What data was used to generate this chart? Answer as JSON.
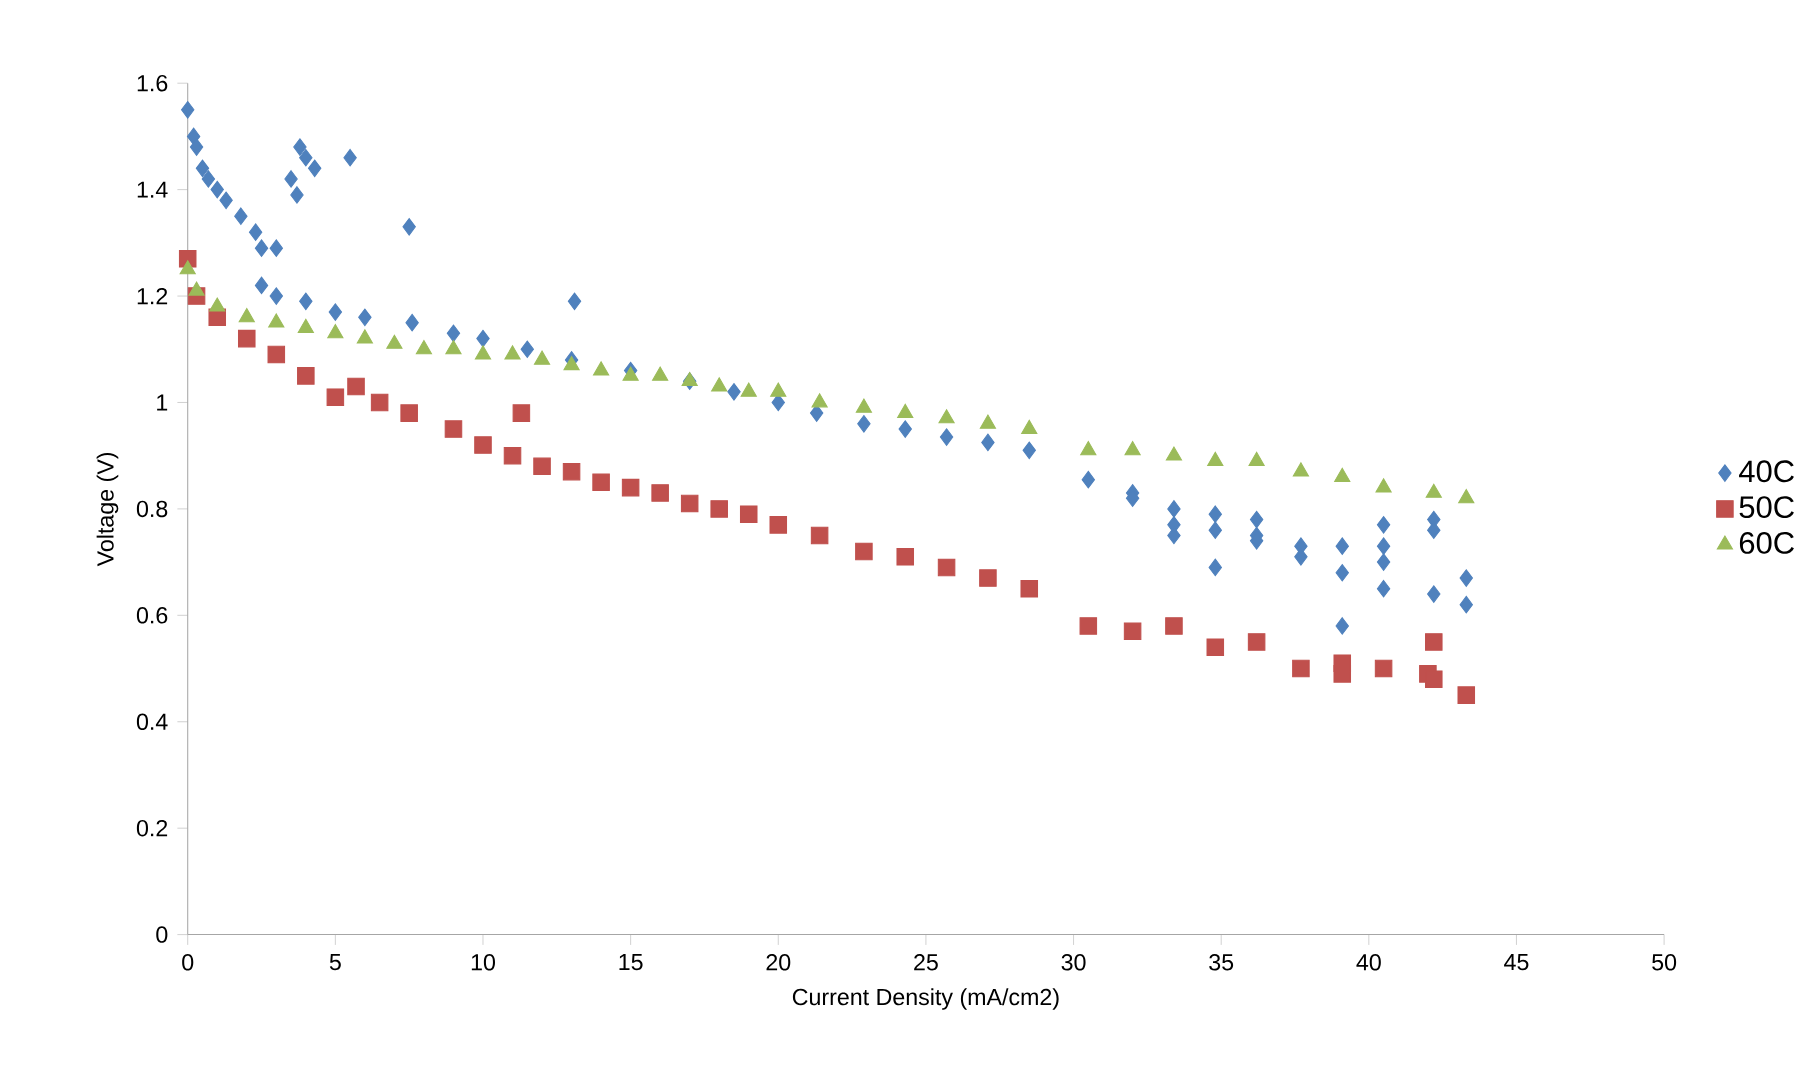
{
  "chart_data": {
    "type": "scatter",
    "xlabel": "Current Density (mA/cm2)",
    "ylabel": "Voltage (V)",
    "xlim": [
      0,
      50
    ],
    "ylim": [
      0,
      1.6
    ],
    "xticks": [
      0,
      5,
      10,
      15,
      20,
      25,
      30,
      35,
      40,
      45,
      50
    ],
    "yticks": [
      0,
      0.2,
      0.4,
      0.6,
      0.8,
      1,
      1.2,
      1.4,
      1.6
    ],
    "legend": "right",
    "grid": false,
    "series": [
      {
        "name": "40C",
        "color": "#4f81bd",
        "marker": "diamond",
        "x": [
          0,
          0.2,
          0.3,
          0.5,
          0.7,
          1,
          1.3,
          1.8,
          2.3,
          2.5,
          3,
          3.5,
          3.7,
          3.8,
          4.0,
          4.3,
          5.5,
          7.5,
          13.1,
          2.5,
          3,
          4,
          5,
          6,
          7.6,
          9,
          10,
          11.5,
          13,
          15,
          17,
          18.5,
          20,
          21.3,
          22.9,
          24.3,
          25.7,
          27.1,
          28.5,
          30.5,
          32,
          32,
          33.4,
          33.4,
          33.4,
          34.8,
          34.8,
          34.8,
          36.2,
          36.2,
          36.2,
          37.7,
          37.7,
          39.1,
          39.1,
          39.1,
          40.5,
          40.5,
          40.5,
          40.5,
          42.2,
          42.2,
          42.2,
          43.3,
          43.3
        ],
        "values": [
          1.55,
          1.5,
          1.48,
          1.44,
          1.42,
          1.4,
          1.38,
          1.35,
          1.32,
          1.29,
          1.29,
          1.42,
          1.39,
          1.48,
          1.46,
          1.44,
          1.46,
          1.33,
          1.19,
          1.22,
          1.2,
          1.19,
          1.17,
          1.16,
          1.15,
          1.13,
          1.12,
          1.1,
          1.08,
          1.06,
          1.04,
          1.02,
          1.0,
          0.98,
          0.96,
          0.95,
          0.935,
          0.925,
          0.91,
          0.855,
          0.83,
          0.82,
          0.8,
          0.77,
          0.75,
          0.79,
          0.76,
          0.69,
          0.78,
          0.75,
          0.74,
          0.73,
          0.71,
          0.73,
          0.68,
          0.58,
          0.77,
          0.73,
          0.7,
          0.65,
          0.78,
          0.76,
          0.64,
          0.67,
          0.62
        ]
      },
      {
        "name": "50C",
        "color": "#c0504d",
        "marker": "square",
        "x": [
          0,
          0.3,
          1,
          2,
          3,
          4,
          5,
          5.7,
          6.5,
          7.5,
          9,
          10,
          11,
          11.3,
          12,
          13,
          14,
          15,
          16,
          17,
          18,
          19,
          20,
          21.4,
          22.9,
          24.3,
          25.7,
          27.1,
          28.5,
          30.5,
          32,
          33.4,
          34.8,
          36.2,
          37.7,
          39.1,
          39.1,
          40.5,
          42,
          42.2,
          42.2,
          43.3
        ],
        "values": [
          1.27,
          1.2,
          1.16,
          1.12,
          1.09,
          1.05,
          1.01,
          1.03,
          1.0,
          0.98,
          0.95,
          0.92,
          0.9,
          0.98,
          0.88,
          0.87,
          0.85,
          0.84,
          0.83,
          0.81,
          0.8,
          0.79,
          0.77,
          0.75,
          0.72,
          0.71,
          0.69,
          0.67,
          0.65,
          0.58,
          0.57,
          0.58,
          0.54,
          0.55,
          0.5,
          0.49,
          0.51,
          0.5,
          0.49,
          0.55,
          0.48,
          0.45
        ]
      },
      {
        "name": "60C",
        "color": "#9bbb59",
        "marker": "triangle",
        "x": [
          0,
          0.3,
          1,
          2,
          3,
          4,
          5,
          6,
          7,
          8,
          9,
          10,
          11,
          12,
          13,
          14,
          15,
          16,
          17,
          18,
          19,
          20,
          21.4,
          22.9,
          24.3,
          25.7,
          27.1,
          28.5,
          30.5,
          32,
          33.4,
          34.8,
          36.2,
          37.7,
          39.1,
          40.5,
          42.2,
          43.3
        ],
        "values": [
          1.25,
          1.21,
          1.18,
          1.16,
          1.15,
          1.14,
          1.13,
          1.12,
          1.11,
          1.1,
          1.1,
          1.09,
          1.09,
          1.08,
          1.07,
          1.06,
          1.05,
          1.05,
          1.04,
          1.03,
          1.02,
          1.02,
          1.0,
          0.99,
          0.98,
          0.97,
          0.96,
          0.95,
          0.91,
          0.91,
          0.9,
          0.89,
          0.89,
          0.87,
          0.86,
          0.84,
          0.83,
          0.82
        ]
      }
    ]
  }
}
